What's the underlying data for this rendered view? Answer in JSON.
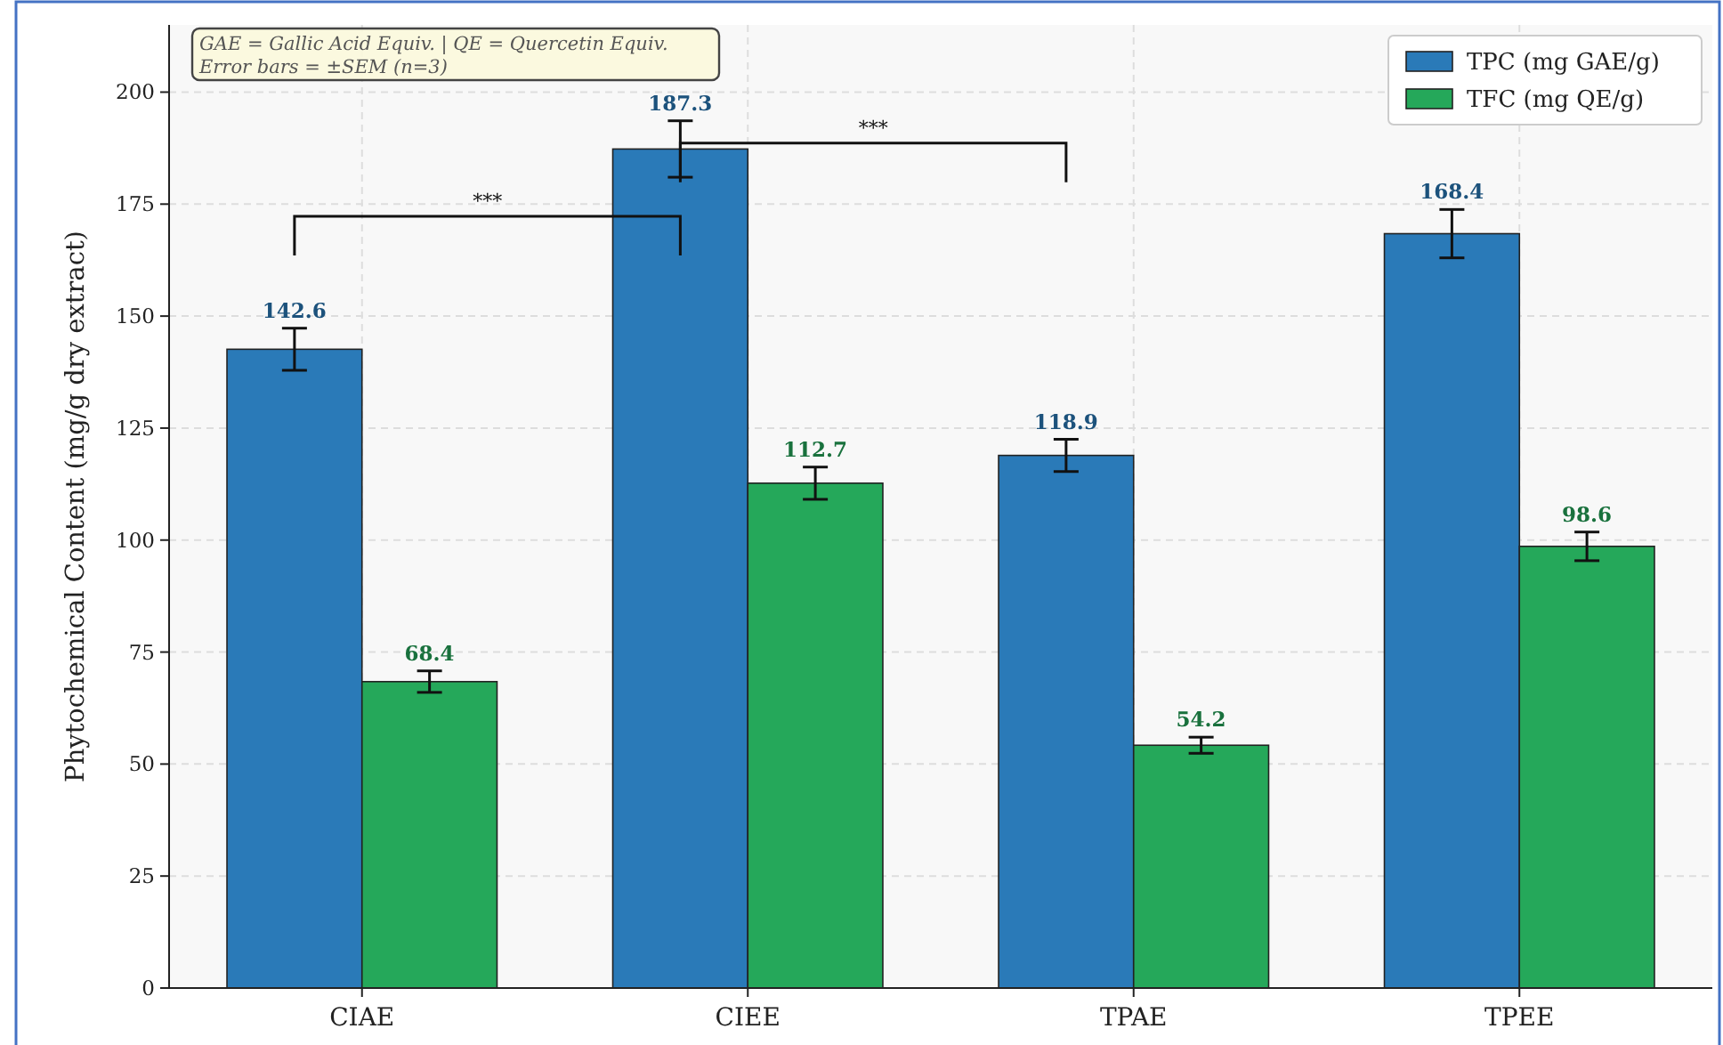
{
  "chart_data": {
    "type": "bar",
    "ylabel": "Phytochemical Content (mg/g dry extract)",
    "categories": [
      "CIAE",
      "CIEE",
      "TPAE",
      "TPEE"
    ],
    "series": [
      {
        "name": "TPC (mg GAE/g)",
        "color": "#2a7ab8",
        "values": [
          142.6,
          187.3,
          118.9,
          168.4
        ],
        "errors": [
          4.7,
          6.3,
          3.6,
          5.4
        ]
      },
      {
        "name": "TFC (mg QE/g)",
        "color": "#25a85a",
        "values": [
          68.4,
          112.7,
          54.2,
          98.6
        ],
        "errors": [
          2.4,
          3.6,
          1.8,
          3.2
        ]
      }
    ],
    "ylim": [
      0,
      215
    ],
    "yticks": [
      0,
      25,
      50,
      75,
      100,
      125,
      150,
      175,
      200
    ],
    "grid": true,
    "legend": "top right",
    "data_labels": true,
    "annotations": [
      "GAE = Gallic Acid Equiv. | QE = Quercetin Equiv.\nError bars = ±SEM (n=3)",
      "***",
      "***"
    ]
  }
}
